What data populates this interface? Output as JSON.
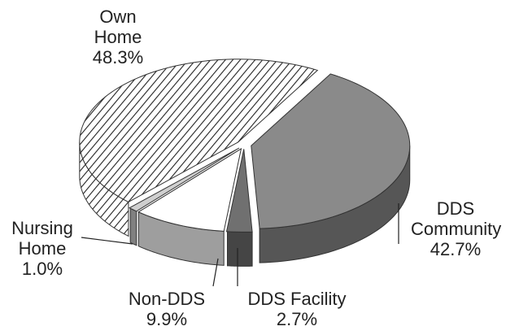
{
  "chart_data": {
    "type": "pie3d",
    "categories": [
      "Own Home",
      "DDS Community",
      "DDS Facility",
      "Non-DDS",
      "Nursing Home"
    ],
    "values": [
      48.3,
      42.7,
      2.7,
      9.9,
      1.0
    ],
    "value_labels": [
      "48.3%",
      "42.7%",
      "2.7%",
      "9.9%",
      "1.0%"
    ],
    "colors": [
      "#ffffff",
      "#8a8a8a",
      "#707070",
      "#ffffff",
      "#cfcfcf"
    ],
    "hatch": [
      true,
      false,
      false,
      false,
      false
    ]
  }
}
